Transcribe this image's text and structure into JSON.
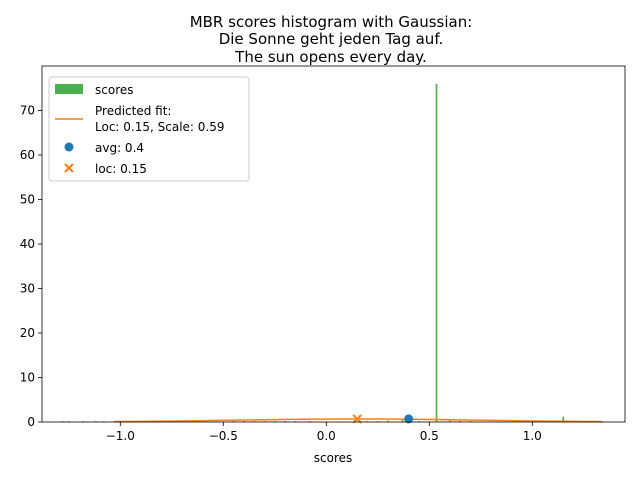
{
  "chart_data": {
    "type": "bar",
    "title": [
      "MBR scores histogram with Gaussian:",
      "Die Sonne geht jeden Tag auf.",
      "The sun opens every day."
    ],
    "xlabel": "scores",
    "ylabel": "",
    "xlim": [
      -1.38,
      1.45
    ],
    "ylim": [
      0,
      80
    ],
    "xticks": [
      -1.0,
      -0.5,
      0.0,
      0.5,
      1.0
    ],
    "xtick_labels": [
      "−1.0",
      "−0.5",
      "0.0",
      "0.5",
      "1.0"
    ],
    "yticks": [
      0,
      10,
      20,
      30,
      40,
      50,
      60,
      70
    ],
    "ytick_labels": [
      "0",
      "10",
      "20",
      "30",
      "40",
      "50",
      "60",
      "70"
    ],
    "grid": false,
    "legend_position": "top-left",
    "histogram": {
      "name": "scores",
      "color": "#4caf50",
      "bin_width": 0.008,
      "bins": [
        {
          "x": -1.28,
          "y": 0.2
        },
        {
          "x": -1.25,
          "y": 0.2
        },
        {
          "x": -1.18,
          "y": 0.2
        },
        {
          "x": -1.12,
          "y": 0.2
        },
        {
          "x": -1.08,
          "y": 0.2
        },
        {
          "x": -0.45,
          "y": 0.2
        },
        {
          "x": -0.4,
          "y": 0.2
        },
        {
          "x": -0.35,
          "y": 0.2
        },
        {
          "x": -0.3,
          "y": 0.2
        },
        {
          "x": -0.25,
          "y": 0.2
        },
        {
          "x": -0.2,
          "y": 0.2
        },
        {
          "x": -0.15,
          "y": 0.2
        },
        {
          "x": -0.08,
          "y": 0.2
        },
        {
          "x": 0.2,
          "y": 0.2
        },
        {
          "x": 0.25,
          "y": 0.2
        },
        {
          "x": 0.3,
          "y": 0.3
        },
        {
          "x": 0.37,
          "y": 0.5
        },
        {
          "x": 0.45,
          "y": 0.2
        },
        {
          "x": 0.535,
          "y": 76
        },
        {
          "x": 0.6,
          "y": 0.3
        },
        {
          "x": 0.65,
          "y": 0.2
        },
        {
          "x": 0.7,
          "y": 0.2
        },
        {
          "x": 1.15,
          "y": 1.2
        }
      ]
    },
    "fit_curve": {
      "name": "Predicted fit:",
      "name_line2": "Loc: 0.15, Scale: 0.59",
      "color": "#ff7f0e",
      "loc": 0.15,
      "scale": 0.59,
      "x_range": [
        -1.03,
        1.34
      ]
    },
    "avg_point": {
      "name": "avg: 0.4",
      "x": 0.4,
      "y": 0.7,
      "color": "#1f77b4"
    },
    "loc_point": {
      "name": "loc: 0.15",
      "x": 0.15,
      "y": 0.68,
      "color": "#ff7f0e"
    }
  }
}
